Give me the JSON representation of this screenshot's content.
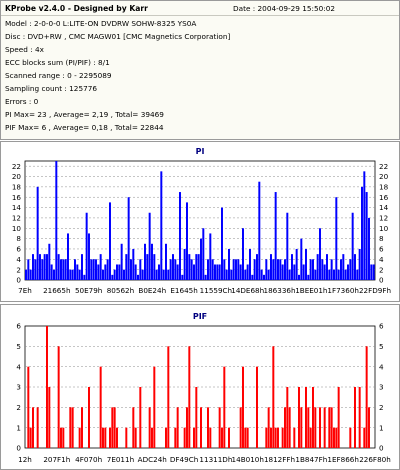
{
  "header": {
    "app_title": "KProbe v2.4.0 - Designed by Karr",
    "date": "Date : 2004-09-29 15:50:02"
  },
  "info_lines": [
    "Model : 2-0-0-0 L:LITE-ON DVDRW SOHW-8325  YS0A",
    "Disc : DVD+RW , CMC MAGW01 [CMC Magnetics Corporation]",
    "Speed : 4x",
    "ECC blocks sum (PI/PIF) : 8/1",
    "Scanned range : 0 - 2295089",
    "Sampling count : 125776",
    "Errors : 0",
    "PI Max= 23 , Average= 2,19 , Total= 39469",
    "PIF Max= 6 , Average= 0,18 , Total= 22844"
  ],
  "colors": {
    "pi_bars": "#0000ff",
    "pif_bars": "#ff0000",
    "plot_bg": "#ffffff",
    "grid": "#8c8c8c",
    "title_text": "#000080"
  },
  "chart_data": [
    {
      "type": "bar",
      "title": "PI",
      "ylim": [
        0,
        23
      ],
      "yticks": [
        0,
        2,
        4,
        6,
        8,
        10,
        12,
        14,
        16,
        18,
        20,
        22
      ],
      "y_axis_both_sides": true,
      "grid": true,
      "xticks": [
        "7Eh",
        "21665h",
        "50E79h",
        "80562h",
        "B0E24h",
        "E1645h",
        "11559Ch",
        "14DE68h",
        "186336h",
        "1BEE01h",
        "1F7360h",
        "22FD9Fh"
      ],
      "max": 23,
      "average": 2.19,
      "sample_count": 150,
      "seed": 13,
      "spikes": [
        [
          5,
          18
        ],
        [
          13,
          23
        ],
        [
          26,
          13
        ],
        [
          27,
          9
        ],
        [
          36,
          15
        ],
        [
          44,
          16
        ],
        [
          53,
          13
        ],
        [
          58,
          21
        ],
        [
          66,
          17
        ],
        [
          69,
          15
        ],
        [
          76,
          10
        ],
        [
          84,
          14
        ],
        [
          93,
          10
        ],
        [
          100,
          19
        ],
        [
          107,
          17
        ],
        [
          112,
          13
        ],
        [
          118,
          8
        ],
        [
          126,
          10
        ],
        [
          133,
          16
        ],
        [
          140,
          13
        ],
        [
          144,
          18
        ],
        [
          145,
          21
        ],
        [
          146,
          17
        ],
        [
          147,
          12
        ]
      ]
    },
    {
      "type": "bar",
      "title": "PIF",
      "ylim": [
        0,
        6
      ],
      "yticks": [
        0,
        1,
        2,
        3,
        4,
        5,
        6
      ],
      "y_axis_both_sides": true,
      "grid": true,
      "xticks": [
        "12h",
        "207F1h",
        "4F070h",
        "7E011h",
        "ADC24h",
        "DF49Ch",
        "11311Dh",
        "14B010h",
        "1812FFh",
        "1B847Fh",
        "1EF866h",
        "226F80h"
      ],
      "max": 6,
      "average": 0.18,
      "sample_count": 150,
      "seed": 7,
      "spikes": [
        [
          1,
          4
        ],
        [
          9,
          6
        ],
        [
          14,
          5
        ],
        [
          20,
          2
        ],
        [
          32,
          4
        ],
        [
          38,
          2
        ],
        [
          55,
          4
        ],
        [
          61,
          5
        ],
        [
          70,
          5
        ],
        [
          73,
          3
        ],
        [
          85,
          4
        ],
        [
          93,
          4
        ],
        [
          99,
          4
        ],
        [
          106,
          5
        ],
        [
          112,
          3
        ],
        [
          120,
          3
        ],
        [
          128,
          2
        ],
        [
          134,
          3
        ],
        [
          141,
          3
        ],
        [
          146,
          5
        ],
        [
          147,
          2
        ]
      ]
    }
  ]
}
